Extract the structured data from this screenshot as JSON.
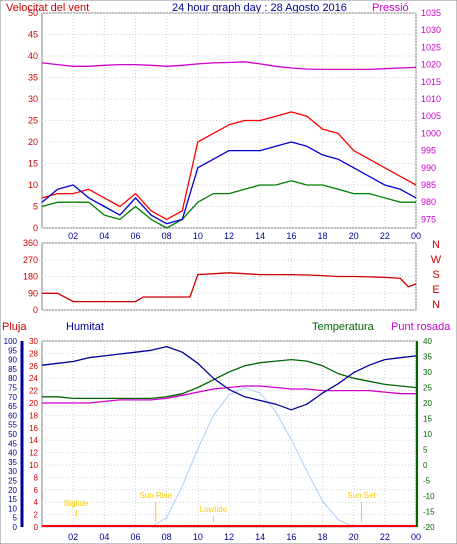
{
  "header": {
    "title": "24 hour graph day : 28 Agosto 2016",
    "left_label": "Velocitat del vent",
    "right_label": "Pressió"
  },
  "direction_letters": [
    "N",
    "W",
    "S",
    "E",
    "N"
  ],
  "bottom_header": {
    "pluja": "Pluja",
    "humitat": "Humitat",
    "temperatura": "Temperatura",
    "punt_rosada": "Punt rosada"
  },
  "colors": {
    "wind_gust": "#ff0000",
    "wind_avg": "#0000cc",
    "wind_min": "#008000",
    "pressure": "#cc00cc",
    "direction": "#cc0000",
    "humidity": "#000099",
    "temperature": "#006600",
    "dewpoint": "#cc00cc",
    "rain": "#ff0000",
    "sun": "#aaccff",
    "markers": "#ffcc00"
  },
  "chart_data": [
    {
      "type": "line",
      "name": "wind-and-pressure",
      "x_ticks": [
        "02",
        "04",
        "06",
        "08",
        "10",
        "12",
        "14",
        "16",
        "18",
        "20",
        "22",
        "00"
      ],
      "y_left_ticks": [
        0,
        5,
        10,
        15,
        20,
        25,
        30,
        35,
        40,
        45,
        50
      ],
      "y_left_range": [
        0,
        50
      ],
      "y_right_ticks": [
        975,
        980,
        985,
        990,
        995,
        1000,
        1005,
        1010,
        1015,
        1020,
        1025,
        1030,
        1035
      ],
      "y_right_range": [
        972.5,
        1035
      ],
      "x": [
        0,
        1,
        2,
        3,
        4,
        5,
        6,
        7,
        8,
        9,
        10,
        11,
        12,
        13,
        14,
        15,
        16,
        17,
        18,
        19,
        20,
        21,
        22,
        23,
        24
      ],
      "series": [
        {
          "key": "gust",
          "axis": "left",
          "values": [
            7,
            8,
            8,
            9,
            7,
            5,
            8,
            4,
            2,
            4,
            20,
            22,
            24,
            25,
            25,
            26,
            27,
            26,
            23,
            22,
            18,
            16,
            14,
            12,
            10
          ]
        },
        {
          "key": "avg",
          "axis": "left",
          "values": [
            6,
            9,
            10,
            7,
            5,
            3,
            7,
            3,
            1,
            2,
            14,
            16,
            18,
            18,
            18,
            19,
            20,
            19,
            17,
            16,
            14,
            12,
            10,
            9,
            7
          ]
        },
        {
          "key": "min",
          "axis": "left",
          "values": [
            5,
            6,
            6,
            6,
            3,
            2,
            5,
            2,
            0,
            2,
            6,
            8,
            8,
            9,
            10,
            10,
            11,
            10,
            10,
            9,
            8,
            8,
            7,
            6,
            6
          ]
        },
        {
          "key": "pressure",
          "axis": "right",
          "values": [
            1020.5,
            1020.0,
            1019.5,
            1019.5,
            1019.8,
            1020.0,
            1020.0,
            1019.8,
            1019.5,
            1019.8,
            1020.2,
            1020.5,
            1020.6,
            1020.8,
            1020.2,
            1019.5,
            1019.0,
            1018.7,
            1018.6,
            1018.6,
            1018.6,
            1018.6,
            1018.8,
            1019.0,
            1019.2
          ]
        }
      ]
    },
    {
      "type": "line",
      "name": "wind-direction",
      "y_ticks": [
        0,
        90,
        180,
        270,
        360
      ],
      "y_range": [
        0,
        360
      ],
      "x": [
        0,
        1,
        2,
        3,
        4,
        5,
        6,
        6.5,
        7,
        8,
        9,
        9.5,
        10,
        11,
        12,
        13,
        14,
        15,
        16,
        17,
        18,
        19,
        20,
        21,
        22,
        23,
        23.5,
        24
      ],
      "values": [
        90,
        90,
        45,
        45,
        45,
        45,
        45,
        70,
        70,
        70,
        70,
        70,
        190,
        195,
        200,
        195,
        190,
        190,
        190,
        188,
        185,
        180,
        180,
        178,
        175,
        170,
        125,
        140
      ]
    },
    {
      "type": "line",
      "name": "humidity-temperature",
      "y_left_ticks": [
        0,
        5,
        10,
        15,
        20,
        25,
        30,
        35,
        40,
        45,
        50,
        55,
        60,
        65,
        70,
        75,
        80,
        85,
        90,
        95,
        100
      ],
      "y_left_range": [
        0,
        100
      ],
      "y_mid_ticks": [
        0,
        2,
        4,
        6,
        8,
        10,
        12,
        14,
        16,
        18,
        20,
        22,
        24,
        26,
        28,
        30
      ],
      "y_mid_range": [
        0,
        30
      ],
      "y_right_ticks": [
        -20,
        -15,
        -10,
        -5,
        0,
        5,
        10,
        15,
        20,
        25,
        30,
        35,
        40
      ],
      "y_right_range": [
        -20,
        40
      ],
      "x": [
        0,
        1,
        2,
        3,
        4,
        5,
        6,
        7,
        8,
        9,
        10,
        11,
        12,
        13,
        14,
        15,
        16,
        17,
        18,
        19,
        20,
        21,
        22,
        23,
        24
      ],
      "series": [
        {
          "key": "humidity",
          "axis": "left",
          "values": [
            87,
            88,
            89,
            91,
            92,
            93,
            94,
            95,
            97,
            94,
            88,
            80,
            74,
            70,
            68,
            66,
            63,
            66,
            72,
            77,
            83,
            87,
            90,
            91,
            92
          ]
        },
        {
          "key": "temperature",
          "axis": "right",
          "values": [
            22,
            22,
            21.5,
            21.5,
            21.5,
            21.5,
            21.5,
            21.5,
            22,
            23,
            25,
            27.5,
            30,
            32,
            33,
            33.5,
            34,
            33.5,
            32,
            29.5,
            28,
            27,
            26,
            25.5,
            25
          ]
        },
        {
          "key": "dewpoint",
          "axis": "right",
          "values": [
            20,
            20,
            20,
            20,
            20.5,
            21,
            21,
            21,
            21.5,
            22.5,
            23.5,
            24.5,
            25,
            25.5,
            25.5,
            25,
            24.5,
            24.5,
            24,
            24,
            24,
            24,
            23.5,
            23,
            23
          ]
        },
        {
          "key": "solar",
          "axis": "left",
          "values": [
            0,
            0,
            0,
            0,
            0,
            0,
            0,
            0,
            5,
            22,
            42,
            60,
            71,
            75,
            72,
            62,
            47,
            30,
            14,
            4,
            0,
            0,
            0,
            0,
            0
          ]
        }
      ],
      "annotations": [
        {
          "label": "Sun Rise",
          "x": 7.3
        },
        {
          "label": "Sun Set",
          "x": 20.5
        },
        {
          "label": "Lowtide",
          "x": 11.0
        },
        {
          "label": "Bigtide",
          "x": 2.2
        }
      ]
    }
  ]
}
